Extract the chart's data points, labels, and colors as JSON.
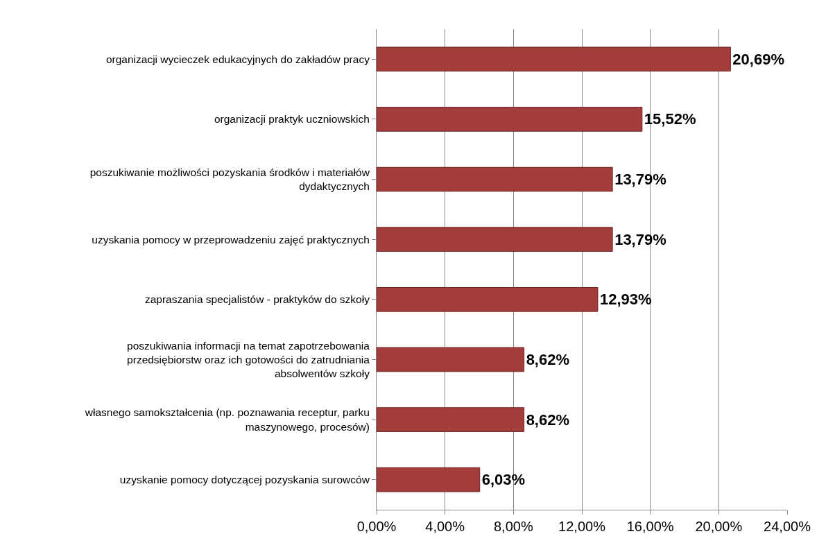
{
  "chart_data": {
    "type": "bar",
    "orientation": "horizontal",
    "categories": [
      "organizacji wycieczek edukacyjnych do zakładów pracy",
      "organizacji praktyk uczniowskich",
      "poszukiwanie możliwości pozyskania środków i materiałów\ndydaktycznych",
      "uzyskania pomocy w przeprowadzeniu zajęć praktycznych",
      "zapraszania specjalistów - praktyków do szkoły",
      "poszukiwania informacji na temat zapotrzebowania\nprzedsiębiorstw oraz ich gotowości do zatrudniania\nabsolwentów szkoły",
      "własnego samokształcenia (np. poznawania receptur, parku\nmaszynowego, procesów)",
      "uzyskanie pomocy dotyczącej pozyskania surowców"
    ],
    "values": [
      20.69,
      15.52,
      13.79,
      13.79,
      12.93,
      8.62,
      8.62,
      6.03
    ],
    "value_labels": [
      "20,69%",
      "15,52%",
      "13,79%",
      "13,79%",
      "12,93%",
      "8,62%",
      "8,62%",
      "6,03%"
    ],
    "color": "#a33d3b",
    "xlim": [
      0,
      24
    ],
    "xticks": [
      {
        "value": 0,
        "label": "0,00%"
      },
      {
        "value": 4,
        "label": "4,00%"
      },
      {
        "value": 8,
        "label": "8,00%"
      },
      {
        "value": 12,
        "label": "12,00%"
      },
      {
        "value": 16,
        "label": "16,00%"
      },
      {
        "value": 20,
        "label": "20,00%"
      },
      {
        "value": 24,
        "label": "24,00%"
      }
    ],
    "grid": "x"
  }
}
